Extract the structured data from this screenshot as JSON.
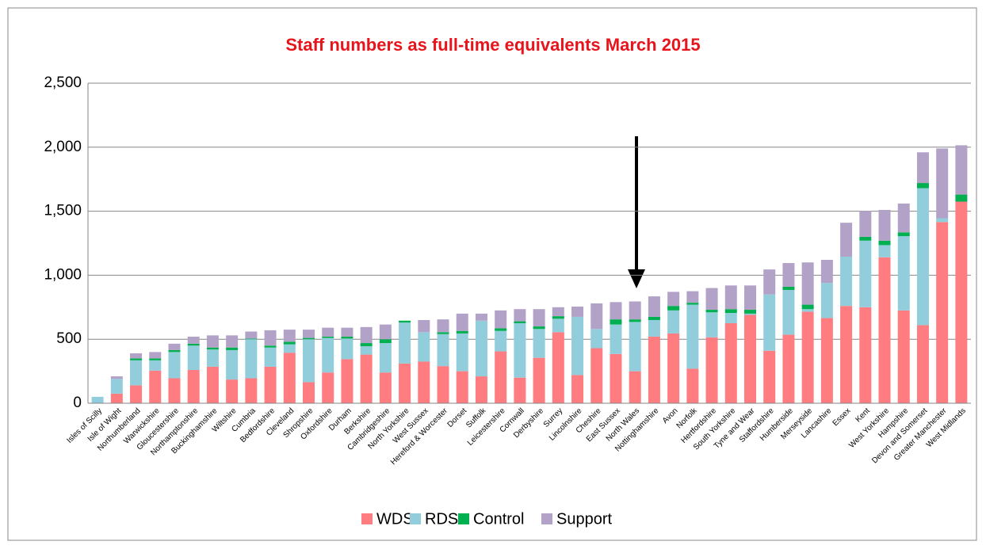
{
  "chart_data": {
    "type": "stacked_bar",
    "title": "Staff numbers as full-time equivalents March 2015",
    "categories": [
      "Isles of Scilly",
      "Isle of Wight",
      "Northumberland",
      "Warwickshire",
      "Gloucestershire",
      "Northamptonshire",
      "Buckinghamshire",
      "Wiltshire",
      "Cumbria",
      "Bedfordshire",
      "Cleveland",
      "Shropshire",
      "Oxfordshire",
      "Durham",
      "Berkshire",
      "Cambridgeshire",
      "North Yorkshire",
      "West Sussex",
      "Hereford & Worcester",
      "Dorset",
      "Suffolk",
      "Leicestershire",
      "Cornwall",
      "Derbyshire",
      "Surrey",
      "Lincolnshire",
      "Cheshire",
      "East Sussex",
      "North Wales",
      "Nottinghamshire",
      "Avon",
      "Norfolk",
      "Hertfordshire",
      "South Yorkshire",
      "Tyne and Wear",
      "Staffordshire",
      "Humberside",
      "Merseyside",
      "Lancashire",
      "Essex",
      "Kent",
      "West Yorkshire",
      "Hampshire",
      "Devon and Somerset",
      "Greater Manchester",
      "West Midlands"
    ],
    "series": [
      {
        "name": "WDS",
        "color": "#ff7c80",
        "values": [
          0,
          75,
          140,
          255,
          195,
          260,
          285,
          185,
          195,
          285,
          395,
          165,
          240,
          345,
          380,
          240,
          310,
          325,
          290,
          250,
          210,
          405,
          200,
          355,
          555,
          220,
          430,
          385,
          250,
          520,
          545,
          270,
          515,
          625,
          690,
          410,
          535,
          715,
          665,
          760,
          750,
          1140,
          725,
          610,
          1415,
          1575
        ]
      },
      {
        "name": "RDS",
        "color": "#92cddc",
        "values": [
          50,
          115,
          195,
          80,
          205,
          190,
          135,
          230,
          305,
          150,
          65,
          335,
          270,
          160,
          65,
          230,
          320,
          230,
          250,
          295,
          435,
          160,
          425,
          225,
          105,
          455,
          150,
          230,
          385,
          130,
          180,
          500,
          195,
          80,
          10,
          440,
          350,
          20,
          275,
          385,
          520,
          95,
          580,
          1070,
          30,
          0
        ]
      },
      {
        "name": "Control",
        "color": "#00b050",
        "values": [
          0,
          0,
          15,
          15,
          15,
          15,
          15,
          20,
          5,
          15,
          20,
          10,
          10,
          15,
          25,
          30,
          15,
          0,
          15,
          20,
          0,
          20,
          15,
          20,
          20,
          0,
          0,
          40,
          20,
          25,
          35,
          15,
          20,
          30,
          30,
          0,
          25,
          35,
          0,
          0,
          30,
          35,
          30,
          40,
          0,
          55
        ]
      },
      {
        "name": "Support",
        "color": "#b3a2c7",
        "values": [
          0,
          20,
          40,
          50,
          50,
          55,
          95,
          95,
          55,
          120,
          95,
          65,
          70,
          70,
          125,
          115,
          0,
          95,
          100,
          135,
          55,
          140,
          95,
          135,
          70,
          80,
          200,
          135,
          140,
          160,
          110,
          90,
          170,
          185,
          190,
          195,
          185,
          330,
          180,
          265,
          200,
          240,
          225,
          240,
          545,
          385
        ]
      }
    ],
    "ylim": [
      0,
      2500
    ],
    "yticks": [
      0,
      500,
      {
        "value": 1000,
        "label": "1,000"
      },
      {
        "value": 1500,
        "label": "1,500"
      },
      {
        "value": 2000,
        "label": "2,000"
      },
      {
        "value": 2500,
        "label": "2,500"
      }
    ],
    "grid": true,
    "legend": "bottom"
  }
}
